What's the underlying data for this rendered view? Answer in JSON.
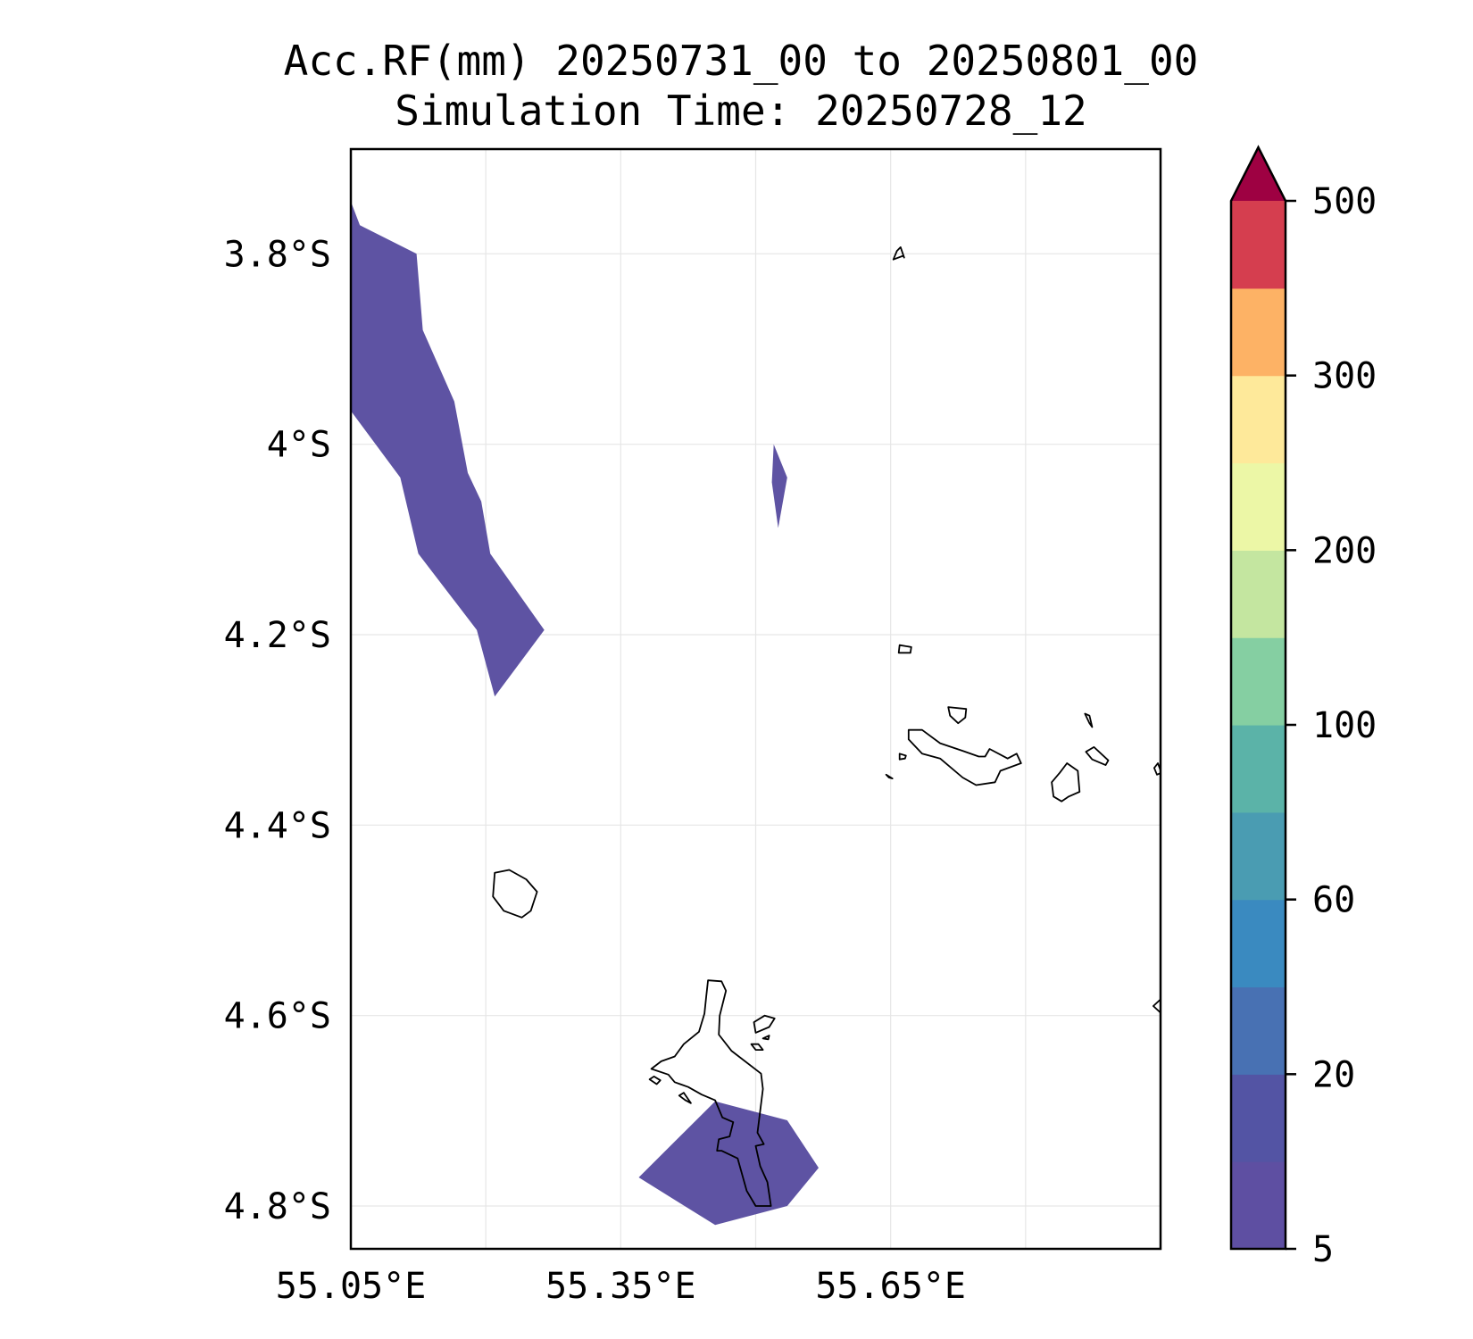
{
  "title": {
    "line1": "Acc.RF(mm) 20250731_00 to 20250801_00",
    "line2": "Simulation Time: 20250728_12"
  },
  "map": {
    "projection": "PlateCarree",
    "lon_range": [
      55.05,
      55.95
    ],
    "lat_range": [
      -4.845,
      -3.69
    ],
    "x_ticks": [
      {
        "value": 55.05,
        "label": "55.05°E"
      },
      {
        "value": 55.35,
        "label": "55.35°E"
      },
      {
        "value": 55.65,
        "label": "55.65°E"
      }
    ],
    "x_grid": [
      55.05,
      55.2,
      55.35,
      55.5,
      55.65,
      55.8
    ],
    "y_ticks": [
      {
        "value": -3.8,
        "label": "3.8°S"
      },
      {
        "value": -4.0,
        "label": "4°S"
      },
      {
        "value": -4.2,
        "label": "4.2°S"
      },
      {
        "value": -4.4,
        "label": "4.4°S"
      },
      {
        "value": -4.6,
        "label": "4.6°S"
      },
      {
        "value": -4.8,
        "label": "4.8°S"
      }
    ],
    "grid": true,
    "grid_color": "#e6e6e6",
    "rain_color": "#5e53a3",
    "rain_regions": [
      {
        "name": "northwest-band",
        "class": "5-10 mm",
        "coords": [
          [
            55.05,
            -3.745
          ],
          [
            55.06,
            -3.77
          ],
          [
            55.123,
            -3.8
          ],
          [
            55.13,
            -3.88
          ],
          [
            55.165,
            -3.955
          ],
          [
            55.18,
            -4.03
          ],
          [
            55.195,
            -4.06
          ],
          [
            55.205,
            -4.115
          ],
          [
            55.265,
            -4.195
          ],
          [
            55.21,
            -4.265
          ],
          [
            55.19,
            -4.195
          ],
          [
            55.125,
            -4.115
          ],
          [
            55.105,
            -4.035
          ],
          [
            55.05,
            -3.965
          ]
        ]
      },
      {
        "name": "central-sliver",
        "class": "5-10 mm",
        "coords": [
          [
            55.52,
            -4.0
          ],
          [
            55.535,
            -4.035
          ],
          [
            55.525,
            -4.088
          ],
          [
            55.518,
            -4.04
          ]
        ]
      },
      {
        "name": "south-patch",
        "class": "5-10 mm",
        "coords": [
          [
            55.455,
            -4.69
          ],
          [
            55.535,
            -4.71
          ],
          [
            55.57,
            -4.76
          ],
          [
            55.535,
            -4.8
          ],
          [
            55.455,
            -4.82
          ],
          [
            55.37,
            -4.77
          ]
        ]
      }
    ],
    "coastlines": [
      {
        "name": "mahe",
        "coords": [
          [
            55.447,
            -4.563
          ],
          [
            55.462,
            -4.564
          ],
          [
            55.467,
            -4.574
          ],
          [
            55.46,
            -4.6
          ],
          [
            55.459,
            -4.62
          ],
          [
            55.473,
            -4.637
          ],
          [
            55.506,
            -4.661
          ],
          [
            55.508,
            -4.677
          ],
          [
            55.502,
            -4.723
          ],
          [
            55.509,
            -4.735
          ],
          [
            55.5,
            -4.737
          ],
          [
            55.505,
            -4.758
          ],
          [
            55.513,
            -4.775
          ],
          [
            55.517,
            -4.8
          ],
          [
            55.5,
            -4.8
          ],
          [
            55.49,
            -4.784
          ],
          [
            55.48,
            -4.75
          ],
          [
            55.462,
            -4.742
          ],
          [
            55.457,
            -4.742
          ],
          [
            55.459,
            -4.73
          ],
          [
            55.471,
            -4.727
          ],
          [
            55.475,
            -4.712
          ],
          [
            55.463,
            -4.707
          ],
          [
            55.455,
            -4.689
          ],
          [
            55.44,
            -4.683
          ],
          [
            55.425,
            -4.675
          ],
          [
            55.41,
            -4.67
          ],
          [
            55.403,
            -4.662
          ],
          [
            55.384,
            -4.656
          ],
          [
            55.395,
            -4.648
          ],
          [
            55.41,
            -4.643
          ],
          [
            55.42,
            -4.63
          ],
          [
            55.437,
            -4.617
          ],
          [
            55.443,
            -4.598
          ],
          [
            55.445,
            -4.58
          ]
        ]
      },
      {
        "name": "silhouette",
        "coords": [
          [
            55.226,
            -4.447
          ],
          [
            55.245,
            -4.457
          ],
          [
            55.257,
            -4.47
          ],
          [
            55.25,
            -4.49
          ],
          [
            55.24,
            -4.497
          ],
          [
            55.24,
            -4.497
          ],
          [
            55.22,
            -4.49
          ],
          [
            55.208,
            -4.475
          ],
          [
            55.21,
            -4.45
          ]
        ]
      },
      {
        "name": "praslin",
        "coords": [
          [
            55.67,
            -4.3
          ],
          [
            55.685,
            -4.3
          ],
          [
            55.705,
            -4.314
          ],
          [
            55.73,
            -4.322
          ],
          [
            55.748,
            -4.328
          ],
          [
            55.755,
            -4.328
          ],
          [
            55.76,
            -4.32
          ],
          [
            55.78,
            -4.33
          ],
          [
            55.79,
            -4.325
          ],
          [
            55.795,
            -4.335
          ],
          [
            55.772,
            -4.343
          ],
          [
            55.766,
            -4.355
          ],
          [
            55.745,
            -4.358
          ],
          [
            55.73,
            -4.35
          ],
          [
            55.705,
            -4.33
          ],
          [
            55.685,
            -4.325
          ],
          [
            55.67,
            -4.31
          ]
        ]
      },
      {
        "name": "la-digue",
        "coords": [
          [
            55.846,
            -4.335
          ],
          [
            55.858,
            -4.343
          ],
          [
            55.86,
            -4.365
          ],
          [
            55.848,
            -4.37
          ],
          [
            55.84,
            -4.375
          ],
          [
            55.831,
            -4.37
          ],
          [
            55.829,
            -4.355
          ],
          [
            55.838,
            -4.345
          ]
        ]
      },
      {
        "name": "curieuse",
        "coords": [
          [
            55.714,
            -4.276
          ],
          [
            55.734,
            -4.278
          ],
          [
            55.733,
            -4.287
          ],
          [
            55.725,
            -4.293
          ],
          [
            55.716,
            -4.285
          ]
        ]
      },
      {
        "name": "felicite",
        "coords": [
          [
            55.876,
            -4.318
          ],
          [
            55.892,
            -4.332
          ],
          [
            55.889,
            -4.337
          ],
          [
            55.874,
            -4.331
          ],
          [
            55.867,
            -4.323
          ]
        ]
      },
      {
        "name": "marianne",
        "coords": [
          [
            55.947,
            -4.335
          ],
          [
            55.951,
            -4.345
          ],
          [
            55.946,
            -4.347
          ],
          [
            55.943,
            -4.34
          ]
        ]
      },
      {
        "name": "grande-soeur",
        "coords": [
          [
            55.871,
            -4.285
          ],
          [
            55.874,
            -4.297
          ],
          [
            55.871,
            -4.293
          ],
          [
            55.866,
            -4.283
          ]
        ]
      },
      {
        "name": "aride",
        "coords": [
          [
            55.661,
            -3.793
          ],
          [
            55.665,
            -3.804
          ],
          [
            55.664,
            -3.802
          ],
          [
            55.653,
            -3.806
          ],
          [
            55.657,
            -3.797
          ]
        ]
      },
      {
        "name": "north-rock",
        "coords": [
          [
            55.66,
            -4.211
          ],
          [
            55.673,
            -4.213
          ],
          [
            55.672,
            -4.219
          ],
          [
            55.659,
            -4.219
          ]
        ]
      },
      {
        "name": "cousin",
        "coords": [
          [
            55.66,
            -4.325
          ],
          [
            55.667,
            -4.327
          ],
          [
            55.666,
            -4.33
          ],
          [
            55.66,
            -4.331
          ]
        ]
      },
      {
        "name": "cousine",
        "coords": [
          [
            55.645,
            -4.347
          ],
          [
            55.652,
            -4.351
          ],
          [
            55.648,
            -4.35
          ]
        ]
      },
      {
        "name": "st-anne",
        "coords": [
          [
            55.498,
            -4.607
          ],
          [
            55.51,
            -4.6
          ],
          [
            55.521,
            -4.603
          ],
          [
            55.515,
            -4.612
          ],
          [
            55.5,
            -4.618
          ]
        ]
      },
      {
        "name": "cerf",
        "coords": [
          [
            55.495,
            -4.63
          ],
          [
            55.503,
            -4.63
          ],
          [
            55.508,
            -4.636
          ],
          [
            55.5,
            -4.636
          ]
        ]
      },
      {
        "name": "moyenne",
        "coords": [
          [
            55.508,
            -4.624
          ],
          [
            55.515,
            -4.621
          ],
          [
            55.514,
            -4.625
          ]
        ]
      },
      {
        "name": "therese",
        "coords": [
          [
            55.387,
            -4.664
          ],
          [
            55.394,
            -4.668
          ],
          [
            55.39,
            -4.672
          ],
          [
            55.382,
            -4.667
          ]
        ]
      },
      {
        "name": "conception",
        "coords": [
          [
            55.42,
            -4.681
          ],
          [
            55.428,
            -4.692
          ],
          [
            55.422,
            -4.689
          ],
          [
            55.415,
            -4.684
          ]
        ]
      },
      {
        "name": "east-edge-islet",
        "coords": [
          [
            55.95,
            -4.583
          ],
          [
            55.942,
            -4.59
          ],
          [
            55.95,
            -4.597
          ]
        ]
      }
    ]
  },
  "colorbar": {
    "extend": "max",
    "ticks": [
      "5",
      "20",
      "60",
      "100",
      "200",
      "300",
      "500"
    ],
    "colors": [
      "#5e4fa2",
      "#5354a4",
      "#4871b3",
      "#3a8ac0",
      "#4a9cb2",
      "#5bb3a8",
      "#85cfa2",
      "#c4e6a0",
      "#ecf7a6",
      "#fee99a",
      "#fdb265",
      "#d53e4f",
      "#9e0142"
    ]
  }
}
